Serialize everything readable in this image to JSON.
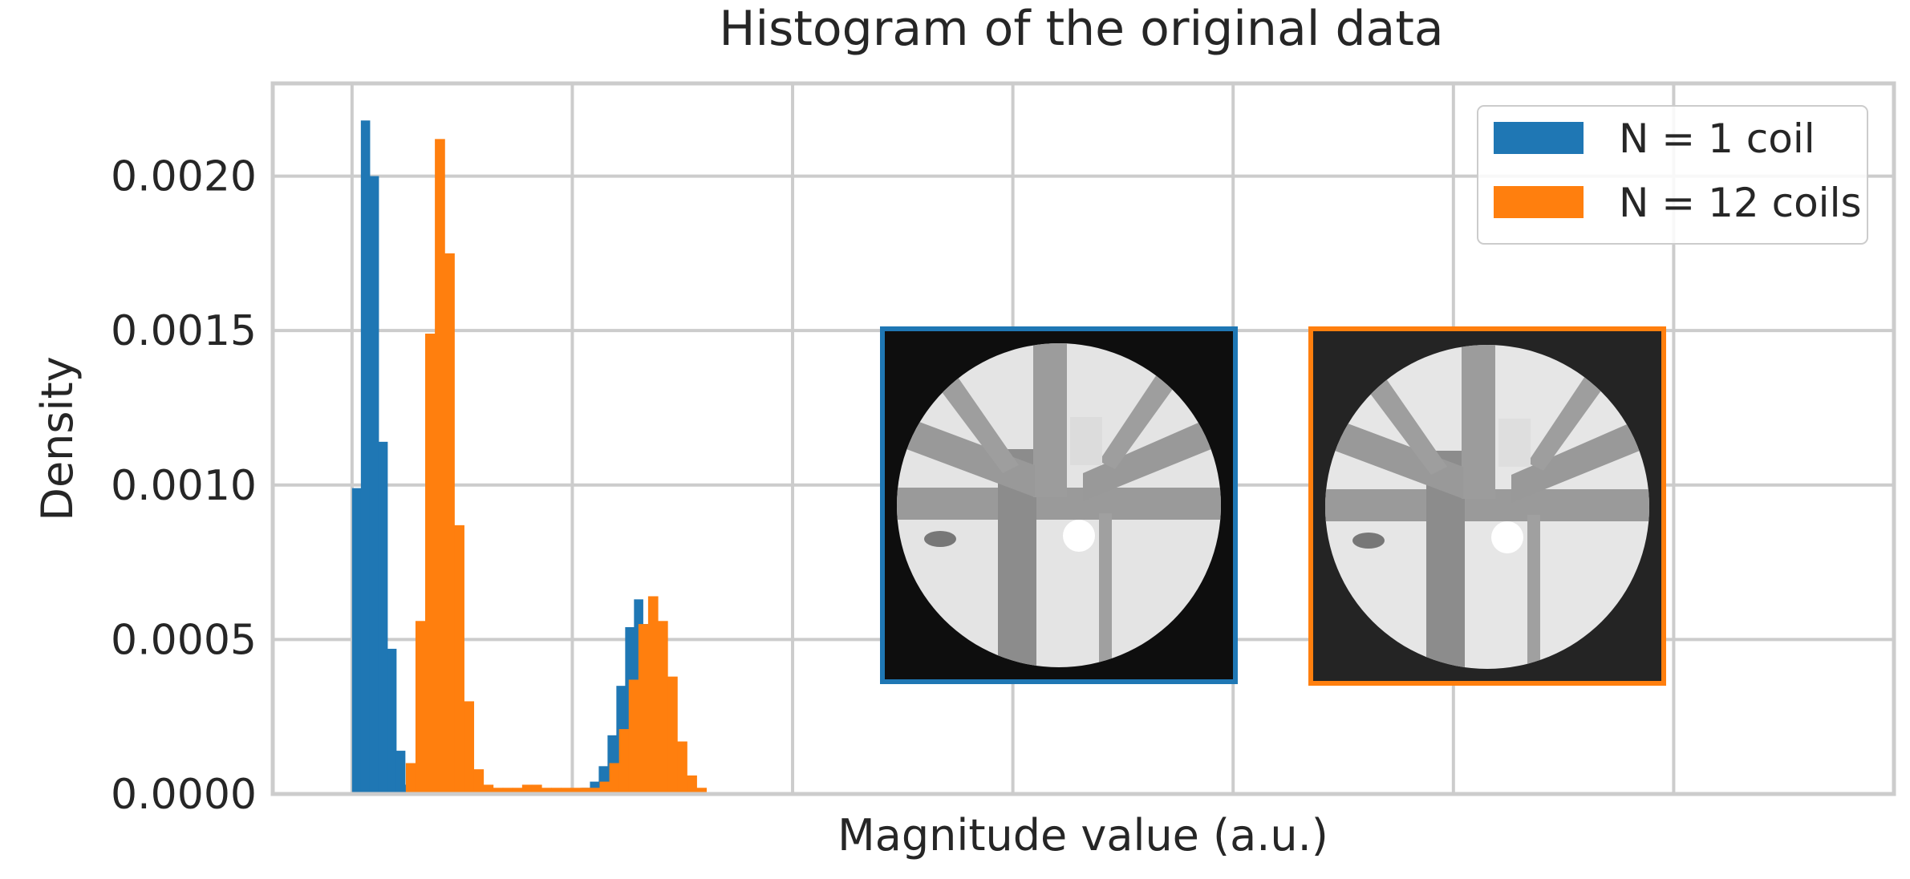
{
  "chart_data": {
    "type": "bar",
    "title": "Histogram of the original data",
    "xlabel": "Magnitude value (a.u.)",
    "ylabel": "Density",
    "xlim": [
      -0.08,
      3.6
    ],
    "ylim": [
      0,
      0.0023
    ],
    "y_ticks": [
      "0.0000",
      "0.0005",
      "0.0010",
      "0.0015",
      "0.0020"
    ],
    "y_tick_values": [
      0,
      0.0005,
      0.001,
      0.0015,
      0.002
    ],
    "x_grid": [
      0.1,
      0.6,
      1.1,
      1.6,
      2.1,
      2.6,
      3.1,
      3.6
    ],
    "grid": true,
    "legend_position": "top-right",
    "series": [
      {
        "name": "N = 1 coil",
        "color": "#1f77b4",
        "bin_width": 0.02,
        "bins": [
          [
            0.1,
            0.00099
          ],
          [
            0.12,
            0.00218
          ],
          [
            0.14,
            0.002
          ],
          [
            0.16,
            0.00114
          ],
          [
            0.18,
            0.00047
          ],
          [
            0.2,
            0.00014
          ],
          [
            0.22,
            3e-05
          ],
          [
            0.24,
            1e-05
          ],
          [
            0.26,
            1e-05
          ],
          [
            0.28,
            1e-05
          ],
          [
            0.3,
            1e-05
          ],
          [
            0.32,
            1e-05
          ],
          [
            0.34,
            1e-05
          ],
          [
            0.36,
            1e-05
          ],
          [
            0.38,
            1e-05
          ],
          [
            0.4,
            1e-05
          ],
          [
            0.42,
            1e-05
          ],
          [
            0.44,
            1e-05
          ],
          [
            0.46,
            1e-05
          ],
          [
            0.48,
            1e-05
          ],
          [
            0.5,
            1e-05
          ],
          [
            0.52,
            1e-05
          ],
          [
            0.54,
            1e-05
          ],
          [
            0.56,
            1e-05
          ],
          [
            0.58,
            1e-05
          ],
          [
            0.6,
            1e-05
          ],
          [
            0.62,
            2e-05
          ],
          [
            0.64,
            4e-05
          ],
          [
            0.66,
            9e-05
          ],
          [
            0.68,
            0.00019
          ],
          [
            0.7,
            0.00035
          ],
          [
            0.72,
            0.00054
          ],
          [
            0.74,
            0.00063
          ],
          [
            0.76,
            0.00055
          ],
          [
            0.78,
            0.00039
          ],
          [
            0.8,
            0.0002
          ],
          [
            0.82,
            7e-05
          ],
          [
            0.84,
            2e-05
          ],
          [
            1.42,
            5e-06
          ],
          [
            1.44,
            5e-06
          ]
        ]
      },
      {
        "name": "N = 12 coils",
        "color": "#ff7f0e",
        "bin_width": 0.022,
        "bins": [
          [
            0.222,
            0.0001
          ],
          [
            0.244,
            0.00056
          ],
          [
            0.266,
            0.00149
          ],
          [
            0.288,
            0.00212
          ],
          [
            0.31,
            0.00175
          ],
          [
            0.332,
            0.00087
          ],
          [
            0.354,
            0.0003
          ],
          [
            0.376,
            8e-05
          ],
          [
            0.398,
            3e-05
          ],
          [
            0.42,
            2e-05
          ],
          [
            0.442,
            2e-05
          ],
          [
            0.464,
            2e-05
          ],
          [
            0.486,
            3e-05
          ],
          [
            0.508,
            3e-05
          ],
          [
            0.53,
            2e-05
          ],
          [
            0.552,
            2e-05
          ],
          [
            0.574,
            2e-05
          ],
          [
            0.596,
            2e-05
          ],
          [
            0.618,
            2e-05
          ],
          [
            0.64,
            2e-05
          ],
          [
            0.662,
            4e-05
          ],
          [
            0.684,
            0.0001
          ],
          [
            0.706,
            0.00021
          ],
          [
            0.728,
            0.00037
          ],
          [
            0.75,
            0.00055
          ],
          [
            0.772,
            0.00064
          ],
          [
            0.794,
            0.00056
          ],
          [
            0.816,
            0.00038
          ],
          [
            0.838,
            0.00017
          ],
          [
            0.86,
            6e-05
          ],
          [
            0.882,
            2e-05
          ],
          [
            1.444,
            6e-06
          ],
          [
            1.466,
            5e-06
          ]
        ]
      }
    ],
    "insets": [
      {
        "name": "inset-image-1-coil",
        "border_color": "#1f77b4",
        "background": "#101010"
      },
      {
        "name": "inset-image-12-coils",
        "border_color": "#ff7f0e",
        "background": "#222222"
      }
    ]
  }
}
